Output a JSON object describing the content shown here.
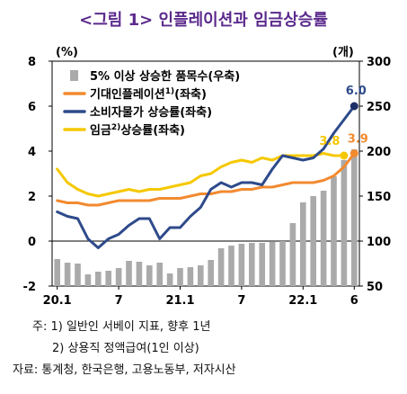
{
  "title": "<그림 1> 인플레이션과 임금상승률",
  "notes": [
    "주: 1) 일반인 서베이 지표, 향후 1년",
    "2) 상용직 정액급여(1인 이상)",
    "자료: 통계청, 한국은행, 고용노동부, 저자시산"
  ],
  "chart_data": {
    "type": "bar+line",
    "left_unit": "(%)",
    "right_unit": "(개)",
    "left_ylim": [
      -2,
      8
    ],
    "left_ticks": [
      "8",
      "6",
      "4",
      "2",
      "0",
      "-2"
    ],
    "right_ylim": [
      50,
      300
    ],
    "right_ticks": [
      "300",
      "250",
      "200",
      "150",
      "100",
      "50"
    ],
    "x_ticks": [
      {
        "index": 0,
        "label": "20.1"
      },
      {
        "index": 6,
        "label": "7"
      },
      {
        "index": 12,
        "label": "21.1"
      },
      {
        "index": 18,
        "label": "7"
      },
      {
        "index": 24,
        "label": "22.1"
      },
      {
        "index": 29,
        "label": "6"
      }
    ],
    "n_points": 30,
    "legend": [
      {
        "id": "bars",
        "label": "5% 이상 상승한 품목수(우축)",
        "sup": "",
        "tail": "",
        "color": "#aaaaaa"
      },
      {
        "id": "expectation",
        "label": "기대인플레이션",
        "sup": "1)",
        "tail": "(좌축)",
        "color": "#f28a30"
      },
      {
        "id": "cpi",
        "label": "소비자물가 상승률(좌축)",
        "sup": "",
        "tail": "",
        "color": "#2e4a8b"
      },
      {
        "id": "wage",
        "label": "임금",
        "sup": "2)",
        "tail": "상승률(좌축)",
        "color": "#f5c800"
      }
    ],
    "series": [
      {
        "id": "bars",
        "axis": "right",
        "values": [
          80,
          76,
          75,
          63,
          66,
          67,
          70,
          78,
          77,
          73,
          76,
          64,
          70,
          71,
          73,
          79,
          92,
          95,
          97,
          98,
          98,
          99,
          100,
          120,
          143,
          150,
          156,
          172,
          190,
          202
        ]
      },
      {
        "id": "expectation",
        "axis": "left",
        "values": [
          1.8,
          1.7,
          1.7,
          1.6,
          1.6,
          1.7,
          1.8,
          1.8,
          1.8,
          1.8,
          1.9,
          1.9,
          1.9,
          2.0,
          2.1,
          2.1,
          2.2,
          2.2,
          2.3,
          2.3,
          2.4,
          2.4,
          2.5,
          2.6,
          2.6,
          2.6,
          2.7,
          2.9,
          3.3,
          3.9
        ]
      },
      {
        "id": "cpi",
        "axis": "left",
        "values": [
          1.3,
          1.1,
          1.0,
          0.1,
          -0.3,
          0.1,
          0.3,
          0.7,
          1.0,
          1.0,
          0.1,
          0.6,
          0.6,
          1.1,
          1.5,
          2.3,
          2.6,
          2.4,
          2.6,
          2.6,
          2.5,
          3.2,
          3.8,
          3.7,
          3.6,
          3.7,
          4.1,
          4.8,
          5.4,
          6.0
        ]
      },
      {
        "id": "wage",
        "axis": "left",
        "values": [
          3.2,
          2.6,
          2.3,
          2.1,
          2.0,
          2.1,
          2.2,
          2.3,
          2.2,
          2.3,
          2.3,
          2.4,
          2.5,
          2.6,
          2.9,
          3.0,
          3.3,
          3.5,
          3.6,
          3.5,
          3.7,
          3.6,
          3.8,
          3.8,
          3.8,
          3.8,
          3.9,
          3.8,
          3.8,
          null
        ]
      }
    ],
    "annotations": [
      {
        "series": "cpi",
        "index": 29,
        "text": "6.0",
        "color": "#2e4a8b",
        "dx": 2,
        "dy": -13
      },
      {
        "series": "expectation",
        "index": 29,
        "text": "3.9",
        "color": "#f28a30",
        "dx": 4,
        "dy": -12
      },
      {
        "series": "wage",
        "index": 28,
        "text": "3.8",
        "color": "#f5c800",
        "dx": -16,
        "dy": -12
      }
    ]
  }
}
